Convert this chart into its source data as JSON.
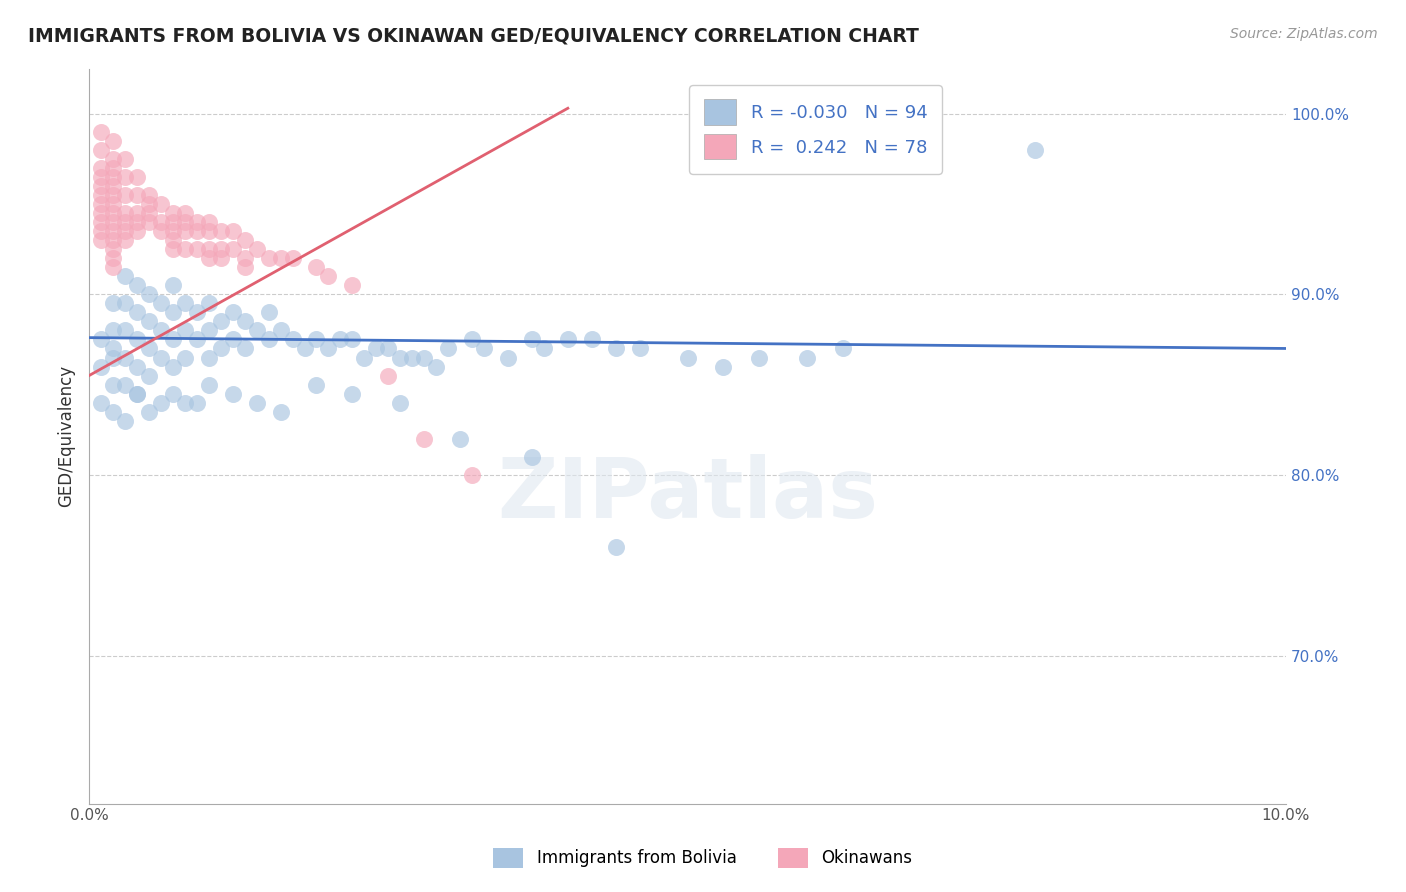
{
  "title": "IMMIGRANTS FROM BOLIVIA VS OKINAWAN GED/EQUIVALENCY CORRELATION CHART",
  "source": "Source: ZipAtlas.com",
  "ylabel": "GED/Equivalency",
  "xlim": [
    0.0,
    0.1
  ],
  "ylim": [
    0.618,
    1.025
  ],
  "blue_color": "#a8c4e0",
  "pink_color": "#f4a7b9",
  "blue_line_color": "#4472c4",
  "pink_line_color": "#e06070",
  "legend_R_blue": "-0.030",
  "legend_N_blue": "94",
  "legend_R_pink": "0.242",
  "legend_N_pink": "78",
  "legend_label_blue": "Immigrants from Bolivia",
  "legend_label_pink": "Okinawans",
  "blue_scatter_x": [
    0.001,
    0.001,
    0.002,
    0.002,
    0.002,
    0.002,
    0.002,
    0.003,
    0.003,
    0.003,
    0.003,
    0.003,
    0.004,
    0.004,
    0.004,
    0.004,
    0.004,
    0.005,
    0.005,
    0.005,
    0.005,
    0.006,
    0.006,
    0.006,
    0.007,
    0.007,
    0.007,
    0.007,
    0.008,
    0.008,
    0.008,
    0.009,
    0.009,
    0.01,
    0.01,
    0.01,
    0.011,
    0.011,
    0.012,
    0.012,
    0.013,
    0.013,
    0.014,
    0.015,
    0.015,
    0.016,
    0.017,
    0.018,
    0.019,
    0.02,
    0.021,
    0.022,
    0.023,
    0.024,
    0.025,
    0.026,
    0.027,
    0.028,
    0.029,
    0.03,
    0.032,
    0.033,
    0.035,
    0.037,
    0.038,
    0.04,
    0.042,
    0.044,
    0.046,
    0.05,
    0.053,
    0.056,
    0.06,
    0.063,
    0.001,
    0.002,
    0.003,
    0.004,
    0.005,
    0.006,
    0.007,
    0.008,
    0.009,
    0.01,
    0.012,
    0.014,
    0.016,
    0.019,
    0.022,
    0.026,
    0.031,
    0.037,
    0.044,
    0.079
  ],
  "blue_scatter_y": [
    0.875,
    0.86,
    0.895,
    0.88,
    0.865,
    0.85,
    0.87,
    0.91,
    0.895,
    0.88,
    0.865,
    0.85,
    0.905,
    0.89,
    0.875,
    0.86,
    0.845,
    0.9,
    0.885,
    0.87,
    0.855,
    0.895,
    0.88,
    0.865,
    0.905,
    0.89,
    0.875,
    0.86,
    0.895,
    0.88,
    0.865,
    0.89,
    0.875,
    0.895,
    0.88,
    0.865,
    0.885,
    0.87,
    0.89,
    0.875,
    0.885,
    0.87,
    0.88,
    0.89,
    0.875,
    0.88,
    0.875,
    0.87,
    0.875,
    0.87,
    0.875,
    0.875,
    0.865,
    0.87,
    0.87,
    0.865,
    0.865,
    0.865,
    0.86,
    0.87,
    0.875,
    0.87,
    0.865,
    0.875,
    0.87,
    0.875,
    0.875,
    0.87,
    0.87,
    0.865,
    0.86,
    0.865,
    0.865,
    0.87,
    0.84,
    0.835,
    0.83,
    0.845,
    0.835,
    0.84,
    0.845,
    0.84,
    0.84,
    0.85,
    0.845,
    0.84,
    0.835,
    0.85,
    0.845,
    0.84,
    0.82,
    0.81,
    0.76,
    0.98
  ],
  "pink_scatter_x": [
    0.001,
    0.001,
    0.001,
    0.001,
    0.001,
    0.001,
    0.001,
    0.001,
    0.001,
    0.001,
    0.001,
    0.002,
    0.002,
    0.002,
    0.002,
    0.002,
    0.002,
    0.002,
    0.002,
    0.002,
    0.002,
    0.002,
    0.002,
    0.002,
    0.002,
    0.003,
    0.003,
    0.003,
    0.003,
    0.003,
    0.003,
    0.003,
    0.004,
    0.004,
    0.004,
    0.004,
    0.004,
    0.005,
    0.005,
    0.005,
    0.005,
    0.006,
    0.006,
    0.006,
    0.007,
    0.007,
    0.007,
    0.007,
    0.007,
    0.008,
    0.008,
    0.008,
    0.008,
    0.009,
    0.009,
    0.009,
    0.01,
    0.01,
    0.01,
    0.01,
    0.011,
    0.011,
    0.011,
    0.012,
    0.012,
    0.013,
    0.013,
    0.013,
    0.014,
    0.015,
    0.016,
    0.017,
    0.019,
    0.02,
    0.022,
    0.025,
    0.028,
    0.032
  ],
  "pink_scatter_y": [
    0.99,
    0.98,
    0.97,
    0.965,
    0.96,
    0.955,
    0.95,
    0.945,
    0.94,
    0.935,
    0.93,
    0.985,
    0.975,
    0.97,
    0.965,
    0.96,
    0.955,
    0.95,
    0.945,
    0.94,
    0.935,
    0.93,
    0.925,
    0.92,
    0.915,
    0.975,
    0.965,
    0.955,
    0.945,
    0.94,
    0.935,
    0.93,
    0.965,
    0.955,
    0.945,
    0.94,
    0.935,
    0.955,
    0.95,
    0.945,
    0.94,
    0.95,
    0.94,
    0.935,
    0.945,
    0.94,
    0.935,
    0.93,
    0.925,
    0.945,
    0.94,
    0.935,
    0.925,
    0.94,
    0.935,
    0.925,
    0.94,
    0.935,
    0.925,
    0.92,
    0.935,
    0.925,
    0.92,
    0.935,
    0.925,
    0.93,
    0.92,
    0.915,
    0.925,
    0.92,
    0.92,
    0.92,
    0.915,
    0.91,
    0.905,
    0.855,
    0.82,
    0.8
  ],
  "watermark_text": "ZIPatlas",
  "background_color": "#ffffff",
  "grid_color": "#cccccc",
  "ytick_positions": [
    0.7,
    0.8,
    0.9,
    1.0
  ],
  "ytick_labels": [
    "70.0%",
    "80.0%",
    "90.0%",
    "100.0%"
  ],
  "xtick_positions": [
    0.0,
    0.1
  ],
  "xtick_labels": [
    "0.0%",
    "10.0%"
  ],
  "grid_yticks": [
    0.7,
    0.8,
    0.9,
    1.0
  ]
}
